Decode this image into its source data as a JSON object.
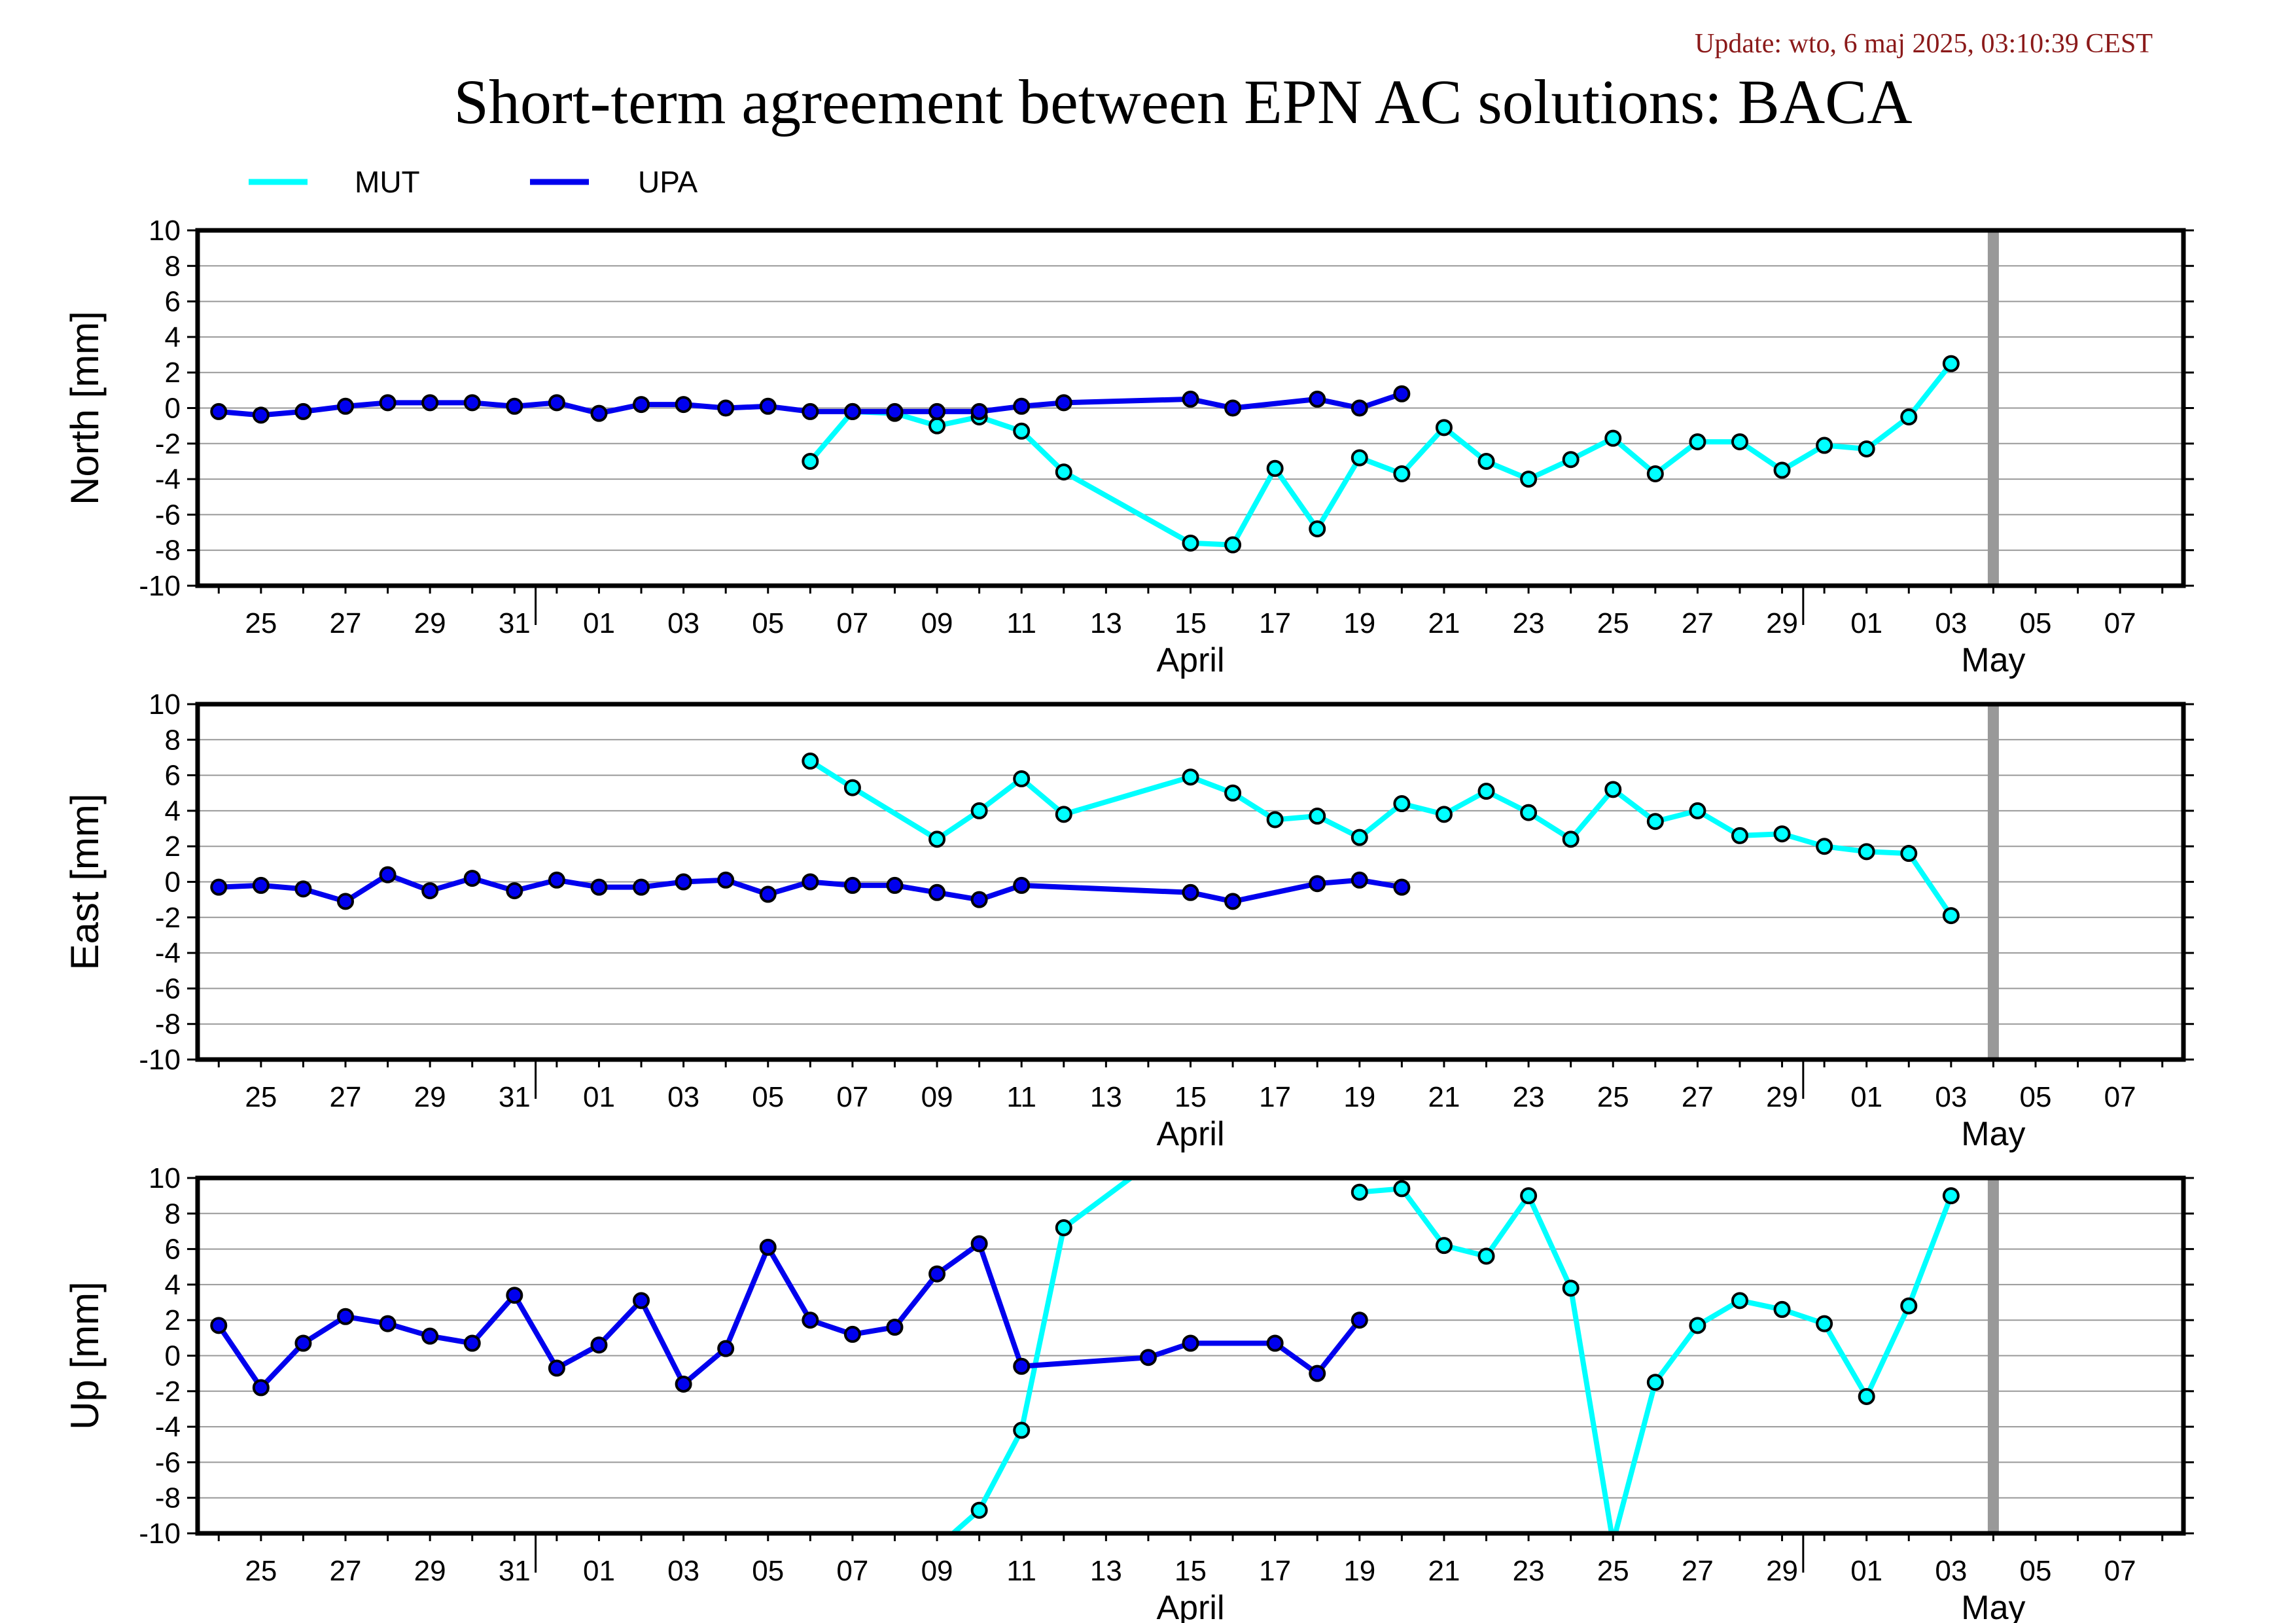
{
  "update_text": "Update: wto, 6 maj 2025, 03:10:39 CEST",
  "chart_data": {
    "type": "line",
    "title": "Short-term agreement between EPN AC solutions: BACA",
    "legend": [
      {
        "name": "MUT",
        "color": "#00ffff"
      },
      {
        "name": "UPA",
        "color": "#0000ee"
      }
    ],
    "legend_placement": "top-left",
    "x_axis": {
      "start": "2025-03-24",
      "end": "2025-05-09",
      "tick_labels": [
        "25",
        "27",
        "29",
        "31",
        "01",
        "03",
        "05",
        "07",
        "09",
        "11",
        "13",
        "15",
        "17",
        "19",
        "21",
        "23",
        "25",
        "27",
        "29",
        "01",
        "03",
        "05",
        "07"
      ],
      "month_labels": [
        "April",
        "May"
      ]
    },
    "marker_line": "2025-05-05",
    "grid": true,
    "panels": [
      {
        "ylabel": "North [mm]",
        "ylim": [
          -10,
          10
        ],
        "yticks": [
          "10",
          "8",
          "6",
          "4",
          "2",
          "0",
          "-2",
          "-4",
          "-6",
          "-8",
          "-10"
        ],
        "series": [
          {
            "name": "MUT",
            "points": [
              [
                "2025-04-07",
                -3.0
              ],
              [
                "2025-04-08",
                -0.2
              ],
              [
                "2025-04-09",
                -0.3
              ],
              [
                "2025-04-10",
                -1.0
              ],
              [
                "2025-04-11",
                -0.5
              ],
              [
                "2025-04-12",
                -1.3
              ],
              [
                "2025-04-13",
                -3.6
              ],
              [
                "2025-04-16",
                -7.6
              ],
              [
                "2025-04-17",
                -7.7
              ],
              [
                "2025-04-18",
                -3.4
              ],
              [
                "2025-04-19",
                -6.8
              ],
              [
                "2025-04-20",
                -2.8
              ],
              [
                "2025-04-21",
                -3.7
              ],
              [
                "2025-04-22",
                -1.1
              ],
              [
                "2025-04-23",
                -3.0
              ],
              [
                "2025-04-24",
                -4.0
              ],
              [
                "2025-04-25",
                -2.9
              ],
              [
                "2025-04-26",
                -1.7
              ],
              [
                "2025-04-27",
                -3.7
              ],
              [
                "2025-04-28",
                -1.9
              ],
              [
                "2025-04-29",
                -1.9
              ],
              [
                "2025-04-30",
                -3.5
              ],
              [
                "2025-05-01",
                -2.1
              ],
              [
                "2025-05-02",
                -2.3
              ],
              [
                "2025-05-03",
                -0.5
              ],
              [
                "2025-05-04",
                2.5
              ]
            ]
          },
          {
            "name": "UPA",
            "points": [
              [
                "2025-03-24",
                -0.2
              ],
              [
                "2025-03-25",
                -0.4
              ],
              [
                "2025-03-26",
                -0.2
              ],
              [
                "2025-03-27",
                0.1
              ],
              [
                "2025-03-28",
                0.3
              ],
              [
                "2025-03-29",
                0.3
              ],
              [
                "2025-03-30",
                0.3
              ],
              [
                "2025-03-31",
                0.1
              ],
              [
                "2025-04-01",
                0.3
              ],
              [
                "2025-04-02",
                -0.3
              ],
              [
                "2025-04-03",
                0.2
              ],
              [
                "2025-04-04",
                0.2
              ],
              [
                "2025-04-05",
                0.0
              ],
              [
                "2025-04-06",
                0.1
              ],
              [
                "2025-04-07",
                -0.2
              ],
              [
                "2025-04-08",
                -0.2
              ],
              [
                "2025-04-09",
                -0.2
              ],
              [
                "2025-04-10",
                -0.2
              ],
              [
                "2025-04-11",
                -0.2
              ],
              [
                "2025-04-12",
                0.1
              ],
              [
                "2025-04-13",
                0.3
              ],
              [
                "2025-04-16",
                0.5
              ],
              [
                "2025-04-17",
                0.0
              ],
              [
                "2025-04-19",
                0.5
              ],
              [
                "2025-04-20",
                0.0
              ],
              [
                "2025-04-21",
                0.8
              ]
            ]
          }
        ]
      },
      {
        "ylabel": "East [mm]",
        "ylim": [
          -10,
          10
        ],
        "yticks": [
          "10",
          "8",
          "6",
          "4",
          "2",
          "0",
          "-2",
          "-4",
          "-6",
          "-8",
          "-10"
        ],
        "series": [
          {
            "name": "MUT",
            "points": [
              [
                "2025-04-07",
                6.8
              ],
              [
                "2025-04-08",
                5.3
              ],
              [
                "2025-04-10",
                2.4
              ],
              [
                "2025-04-11",
                4.0
              ],
              [
                "2025-04-12",
                5.8
              ],
              [
                "2025-04-13",
                3.8
              ],
              [
                "2025-04-16",
                5.9
              ],
              [
                "2025-04-17",
                5.0
              ],
              [
                "2025-04-18",
                3.5
              ],
              [
                "2025-04-19",
                3.7
              ],
              [
                "2025-04-20",
                2.5
              ],
              [
                "2025-04-21",
                4.4
              ],
              [
                "2025-04-22",
                3.8
              ],
              [
                "2025-04-23",
                5.1
              ],
              [
                "2025-04-24",
                3.9
              ],
              [
                "2025-04-25",
                2.4
              ],
              [
                "2025-04-26",
                5.2
              ],
              [
                "2025-04-27",
                3.4
              ],
              [
                "2025-04-28",
                4.0
              ],
              [
                "2025-04-29",
                2.6
              ],
              [
                "2025-04-30",
                2.7
              ],
              [
                "2025-05-01",
                2.0
              ],
              [
                "2025-05-02",
                1.7
              ],
              [
                "2025-05-03",
                1.6
              ],
              [
                "2025-05-04",
                -1.9
              ]
            ]
          },
          {
            "name": "UPA",
            "points": [
              [
                "2025-03-24",
                -0.3
              ],
              [
                "2025-03-25",
                -0.2
              ],
              [
                "2025-03-26",
                -0.4
              ],
              [
                "2025-03-27",
                -1.1
              ],
              [
                "2025-03-28",
                0.4
              ],
              [
                "2025-03-29",
                -0.5
              ],
              [
                "2025-03-30",
                0.2
              ],
              [
                "2025-03-31",
                -0.5
              ],
              [
                "2025-04-01",
                0.1
              ],
              [
                "2025-04-02",
                -0.3
              ],
              [
                "2025-04-03",
                -0.3
              ],
              [
                "2025-04-04",
                0.0
              ],
              [
                "2025-04-05",
                0.1
              ],
              [
                "2025-04-06",
                -0.7
              ],
              [
                "2025-04-07",
                0.0
              ],
              [
                "2025-04-08",
                -0.2
              ],
              [
                "2025-04-09",
                -0.2
              ],
              [
                "2025-04-10",
                -0.6
              ],
              [
                "2025-04-11",
                -1.0
              ],
              [
                "2025-04-12",
                -0.2
              ],
              [
                "2025-04-16",
                -0.6
              ],
              [
                "2025-04-17",
                -1.1
              ],
              [
                "2025-04-19",
                -0.1
              ],
              [
                "2025-04-20",
                0.1
              ],
              [
                "2025-04-21",
                -0.3
              ]
            ]
          }
        ]
      },
      {
        "ylabel": "Up [mm]",
        "ylim": [
          -10,
          10
        ],
        "yticks": [
          "10",
          "8",
          "6",
          "4",
          "2",
          "0",
          "-2",
          "-4",
          "-6",
          "-8",
          "-10"
        ],
        "series": [
          {
            "name": "MUT",
            "segments": [
              [
                [
                  "2025-04-10",
                  -10.8
                ],
                [
                  "2025-04-11",
                  -8.7
                ],
                [
                  "2025-04-12",
                  -4.2
                ],
                [
                  "2025-04-13",
                  7.2
                ],
                [
                  "2025-04-16",
                  12.5
                ]
              ],
              [
                [
                  "2025-04-20",
                  9.2
                ],
                [
                  "2025-04-21",
                  9.4
                ],
                [
                  "2025-04-22",
                  6.2
                ],
                [
                  "2025-04-23",
                  5.6
                ],
                [
                  "2025-04-24",
                  9.0
                ],
                [
                  "2025-04-25",
                  3.8
                ],
                [
                  "2025-04-26",
                  -10.5
                ],
                [
                  "2025-04-27",
                  -1.5
                ],
                [
                  "2025-04-28",
                  1.7
                ],
                [
                  "2025-04-29",
                  3.1
                ],
                [
                  "2025-04-30",
                  2.6
                ],
                [
                  "2025-05-01",
                  1.8
                ],
                [
                  "2025-05-02",
                  -2.3
                ],
                [
                  "2025-05-03",
                  2.8
                ],
                [
                  "2025-05-04",
                  9.0
                ]
              ]
            ]
          },
          {
            "name": "UPA",
            "points": [
              [
                "2025-03-24",
                1.7
              ],
              [
                "2025-03-25",
                -1.8
              ],
              [
                "2025-03-26",
                0.7
              ],
              [
                "2025-03-27",
                2.2
              ],
              [
                "2025-03-28",
                1.8
              ],
              [
                "2025-03-29",
                1.1
              ],
              [
                "2025-03-30",
                0.7
              ],
              [
                "2025-03-31",
                3.4
              ],
              [
                "2025-04-01",
                -0.7
              ],
              [
                "2025-04-02",
                0.6
              ],
              [
                "2025-04-03",
                3.1
              ],
              [
                "2025-04-04",
                -1.6
              ],
              [
                "2025-04-05",
                0.4
              ],
              [
                "2025-04-06",
                6.1
              ],
              [
                "2025-04-07",
                2.0
              ],
              [
                "2025-04-08",
                1.2
              ],
              [
                "2025-04-09",
                1.6
              ],
              [
                "2025-04-10",
                4.6
              ],
              [
                "2025-04-11",
                6.3
              ],
              [
                "2025-04-12",
                -0.6
              ],
              [
                "2025-04-15",
                -0.1
              ],
              [
                "2025-04-16",
                0.7
              ],
              [
                "2025-04-18",
                0.7
              ],
              [
                "2025-04-19",
                -1.0
              ],
              [
                "2025-04-20",
                2.0
              ]
            ]
          }
        ]
      }
    ]
  }
}
